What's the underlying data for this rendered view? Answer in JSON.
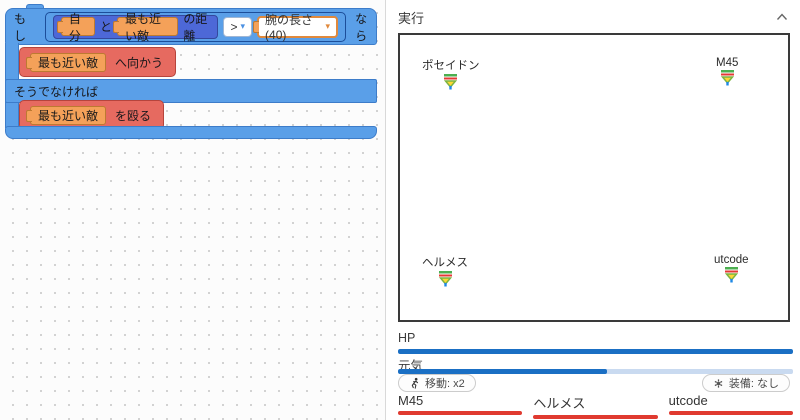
{
  "workspace": {
    "blocks": {
      "if_label": "もし",
      "then_label": "なら",
      "self_label": "自分",
      "and_label": "と",
      "nearest_enemy": "最も近い敵",
      "distance_label": "の距離",
      "operator": ">",
      "arm_length": "腕の長さ(40)",
      "move_toward": "へ向かう",
      "else_label": "そうでなければ",
      "punch": "を殴る"
    }
  },
  "panel": {
    "title": "実行",
    "entities": [
      {
        "name": "ポセイドン",
        "position": "top-left"
      },
      {
        "name": "M45",
        "position": "top-right"
      },
      {
        "name": "ヘルメス",
        "position": "bottom-left"
      },
      {
        "name": "utcode",
        "position": "bottom-right"
      }
    ],
    "stats": {
      "hp_label": "HP",
      "hp_percent": 100,
      "energy_label": "元気",
      "energy_percent": 53
    },
    "badges": {
      "move": "移動: x2",
      "equipment": "装備: なし"
    },
    "opponents": [
      {
        "name": "M45",
        "hp_percent": 100
      },
      {
        "name": "ヘルメス",
        "hp_percent": 100
      },
      {
        "name": "utcode",
        "hp_percent": 100
      }
    ],
    "colors": {
      "block_blue": "#5a9fe8",
      "block_indigo": "#4d68d7",
      "block_orange": "#f4a159",
      "block_red": "#e66a60",
      "bar_blue": "#1a6fc4",
      "bar_red": "#e03a30"
    }
  }
}
